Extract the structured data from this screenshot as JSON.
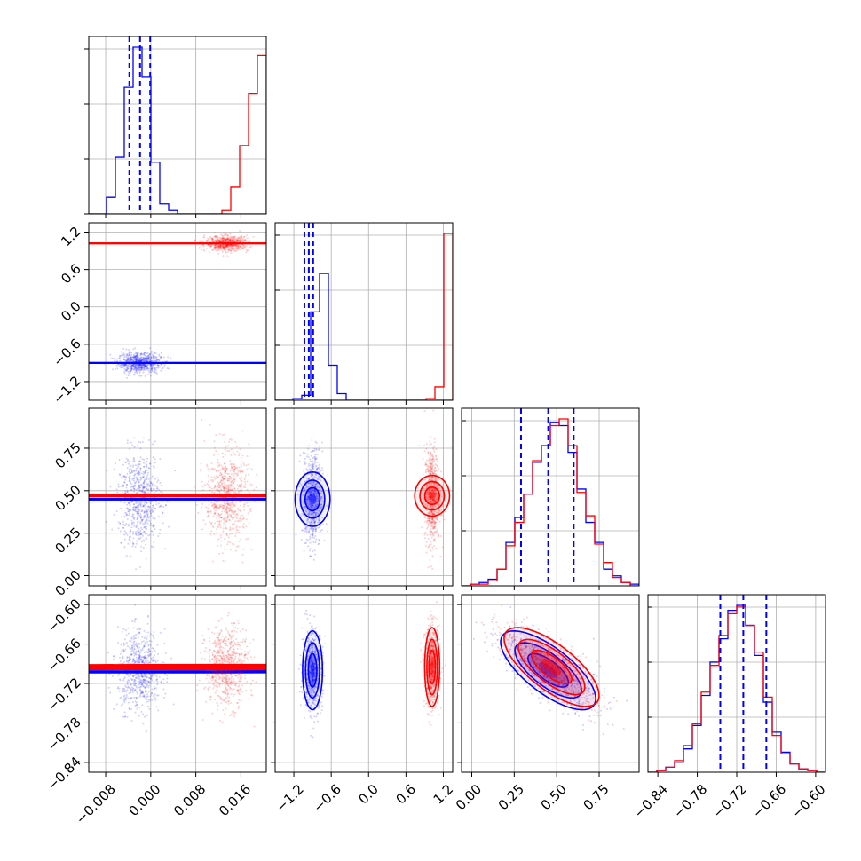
{
  "chart_data": {
    "type": "corner",
    "title": "",
    "series": [
      {
        "color": "#0000ff",
        "mean": [
          -0.002,
          -0.9,
          0.45,
          -0.7
        ]
      },
      {
        "color": "#ff0000",
        "mean": [
          0.0135,
          1.02,
          0.47,
          -0.695
        ]
      }
    ],
    "parameters": [
      {
        "label": "",
        "range": [
          -0.011,
          0.0205
        ],
        "ticks": [
          "-0.008",
          "0.000",
          "0.008",
          "0.016"
        ],
        "tick_values": [
          -0.008,
          0.0,
          0.008,
          0.016
        ]
      },
      {
        "label": "",
        "range": [
          -1.5,
          1.35
        ],
        "ticks": [
          "-1.2",
          "-0.6",
          "0.0",
          "0.6",
          "1.2"
        ],
        "tick_values": [
          -1.2,
          -0.6,
          0.0,
          0.6,
          1.2
        ]
      },
      {
        "label": "",
        "range": [
          -0.06,
          0.985
        ],
        "ticks": [
          "0.00",
          "0.25",
          "0.50",
          "0.75"
        ],
        "tick_values": [
          0.0,
          0.25,
          0.5,
          0.75
        ]
      },
      {
        "label": "",
        "range": [
          -0.855,
          -0.585
        ],
        "ticks": [
          "-0.84",
          "-0.78",
          "-0.72",
          "-0.66",
          "-0.60"
        ],
        "tick_values": [
          -0.84,
          -0.78,
          -0.72,
          -0.66,
          -0.6
        ]
      }
    ],
    "histograms": [
      {
        "bins": [
          -0.011,
          0.0205,
          20
        ],
        "blue": [
          0,
          0,
          10,
          34,
          76,
          100,
          82,
          31,
          6,
          2,
          0,
          0,
          0,
          0,
          0,
          0,
          0,
          0,
          0,
          0
        ],
        "red": [
          0,
          0,
          0,
          0,
          0,
          0,
          0,
          0,
          0,
          0,
          0,
          0,
          0,
          0,
          0,
          2,
          16,
          41,
          72,
          95
        ]
      },
      {
        "bins": [
          -1.5,
          1.35,
          20
        ],
        "blue": [
          0,
          0,
          1,
          3,
          53,
          76,
          21,
          4,
          0,
          0,
          0,
          0,
          0,
          0,
          0,
          0,
          0,
          0,
          0,
          0
        ],
        "red": [
          0,
          0,
          0,
          0,
          0,
          0,
          0,
          0,
          0,
          0,
          0,
          0,
          0,
          0,
          0,
          0,
          0,
          1,
          8,
          100
        ]
      },
      {
        "bins": [
          -0.06,
          0.985,
          20
        ],
        "blue": [
          0,
          1,
          2,
          4,
          10,
          26,
          41,
          55,
          74,
          84,
          98,
          96,
          80,
          58,
          38,
          26,
          10,
          6,
          2,
          1
        ],
        "red": [
          0,
          1,
          1,
          3,
          10,
          24,
          38,
          55,
          75,
          84,
          96,
          100,
          84,
          56,
          42,
          25,
          14,
          5,
          2,
          0
        ]
      },
      {
        "bins": [
          -0.855,
          -0.585,
          20
        ],
        "blue": [
          0,
          1,
          3,
          6,
          14,
          28,
          46,
          66,
          80,
          97,
          100,
          88,
          70,
          42,
          24,
          12,
          5,
          2,
          1,
          0
        ],
        "red": [
          0,
          1,
          3,
          7,
          16,
          29,
          48,
          64,
          82,
          95,
          99,
          88,
          72,
          45,
          22,
          11,
          5,
          2,
          1,
          0
        ]
      }
    ],
    "blue_quantiles": [
      [
        -0.0038,
        -0.0019,
        -0.0001
      ],
      [
        -1.03,
        -0.96,
        -0.89
      ],
      [
        0.29,
        0.45,
        0.6
      ],
      [
        -0.745,
        -0.71,
        -0.675
      ]
    ],
    "scatter_2d": [
      {
        "x": 0,
        "y": 1,
        "blue": {
          "mean": [
            -0.002,
            -0.9
          ],
          "sd": [
            0.0019,
            0.08
          ],
          "rho": 0.0
        },
        "red": {
          "mean": [
            0.0135,
            1.02
          ],
          "sd": [
            0.0019,
            0.06
          ],
          "rho": 0.0
        }
      },
      {
        "x": 0,
        "y": 2,
        "blue": {
          "mean": [
            -0.002,
            0.45
          ],
          "sd": [
            0.0019,
            0.14
          ],
          "rho": 0.0
        },
        "red": {
          "mean": [
            0.0135,
            0.47
          ],
          "sd": [
            0.0019,
            0.14
          ],
          "rho": 0.0
        }
      },
      {
        "x": 1,
        "y": 2,
        "blue": {
          "mean": [
            -0.9,
            0.45
          ],
          "sd": [
            0.08,
            0.14
          ],
          "rho": 0.0
        },
        "red": {
          "mean": [
            1.02,
            0.47
          ],
          "sd": [
            0.06,
            0.14
          ],
          "rho": 0.0
        }
      },
      {
        "x": 0,
        "y": 3,
        "blue": {
          "mean": [
            -0.002,
            -0.7
          ],
          "sd": [
            0.0019,
            0.03
          ],
          "rho": 0.0
        },
        "red": {
          "mean": [
            0.0135,
            -0.695
          ],
          "sd": [
            0.0019,
            0.03
          ],
          "rho": 0.0
        }
      },
      {
        "x": 1,
        "y": 3,
        "blue": {
          "mean": [
            -0.9,
            -0.7
          ],
          "sd": [
            0.08,
            0.03
          ],
          "rho": 0.0
        },
        "red": {
          "mean": [
            1.02,
            -0.695
          ],
          "sd": [
            0.06,
            0.03
          ],
          "rho": 0.0
        }
      },
      {
        "x": 2,
        "y": 3,
        "blue": {
          "mean": [
            0.45,
            -0.7
          ],
          "sd": [
            0.14,
            0.03
          ],
          "rho": -0.72
        },
        "red": {
          "mean": [
            0.47,
            -0.695
          ],
          "sd": [
            0.14,
            0.03
          ],
          "rho": -0.72
        }
      }
    ],
    "grid": true
  }
}
